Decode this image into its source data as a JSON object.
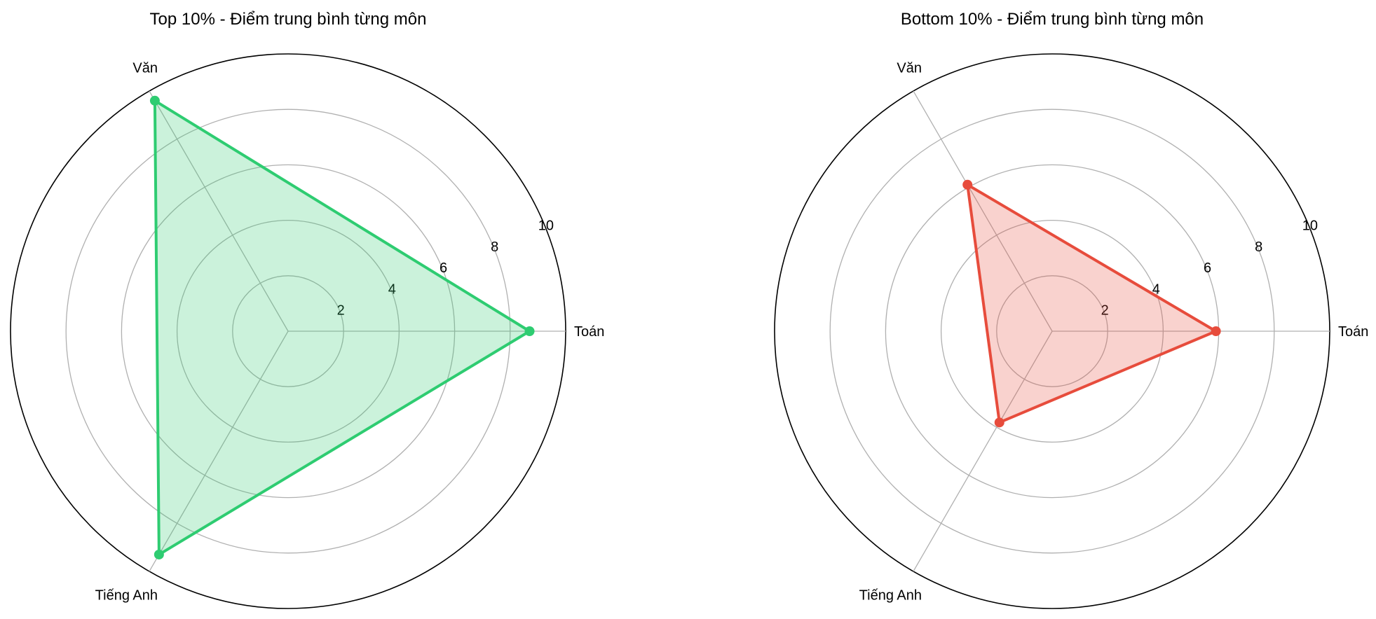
{
  "chart_data": [
    {
      "type": "radar",
      "title": "Top 10% - Điểm trung bình từng môn",
      "categories": [
        "Toán",
        "Văn",
        "Tiếng Anh"
      ],
      "series": [
        {
          "values": [
            8.7,
            9.6,
            9.3
          ],
          "color": "#2ecc71"
        }
      ],
      "rlim": [
        0,
        10
      ],
      "rticks": [
        "2",
        "4",
        "6",
        "8",
        "10"
      ],
      "grid": true
    },
    {
      "type": "radar",
      "title": "Bottom 10% - Điểm trung bình từng môn",
      "categories": [
        "Toán",
        "Văn",
        "Tiếng Anh"
      ],
      "series": [
        {
          "values": [
            5.9,
            6.1,
            3.8
          ],
          "color": "#e74c3c"
        }
      ],
      "rlim": [
        0,
        10
      ],
      "rticks": [
        "2",
        "4",
        "6",
        "8",
        "10"
      ],
      "grid": true
    }
  ]
}
